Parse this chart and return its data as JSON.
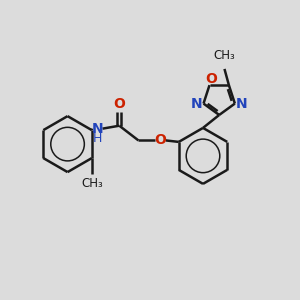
{
  "bg_color": "#dcdcdc",
  "bond_color": "#1a1a1a",
  "bond_width": 1.8,
  "font_size": 10,
  "fig_size": [
    3.0,
    3.0
  ],
  "dpi": 100,
  "xlim": [
    0,
    10
  ],
  "ylim": [
    0,
    10
  ],
  "N_color": "#2244bb",
  "O_color": "#cc2200",
  "H_color": "#2244bb",
  "C_color": "#1a1a1a",
  "aromatic_inner_scale": 0.6
}
